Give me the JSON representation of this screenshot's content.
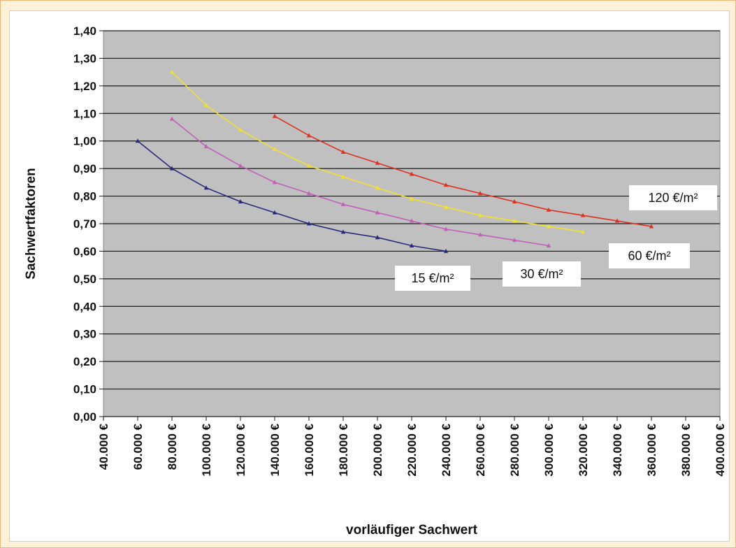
{
  "chart_data": {
    "type": "line",
    "title": "",
    "xlabel": "vorläufiger Sachwert",
    "ylabel": "Sachwertfaktoren",
    "xlim": [
      40000,
      400000
    ],
    "ylim": [
      0,
      1.4
    ],
    "x_ticks": [
      "40.000 €",
      "60.000 €",
      "80.000 €",
      "100.000 €",
      "120.000 €",
      "140.000 €",
      "160.000 €",
      "180.000 €",
      "200.000 €",
      "220.000 €",
      "240.000 €",
      "260.000 €",
      "280.000 €",
      "300.000 €",
      "320.000 €",
      "340.000 €",
      "360.000 €",
      "380.000 €",
      "400.000 €"
    ],
    "y_ticks": [
      "0,00",
      "0,10",
      "0,20",
      "0,30",
      "0,40",
      "0,50",
      "0,60",
      "0,70",
      "0,80",
      "0,90",
      "1,00",
      "1,10",
      "1,20",
      "1,30",
      "1,40"
    ],
    "grid": true,
    "plot_background": "#c0c0c0",
    "series": [
      {
        "name": "15 €/m²",
        "color": "#2a2a7a",
        "x": [
          60000,
          80000,
          100000,
          120000,
          140000,
          160000,
          180000,
          200000,
          220000,
          240000
        ],
        "y": [
          1.0,
          0.9,
          0.83,
          0.78,
          0.74,
          0.7,
          0.67,
          0.65,
          0.62,
          0.6
        ]
      },
      {
        "name": "30 €/m²",
        "color": "#c060b8",
        "x": [
          80000,
          100000,
          120000,
          140000,
          160000,
          180000,
          200000,
          220000,
          240000,
          260000,
          280000,
          300000
        ],
        "y": [
          1.08,
          0.98,
          0.91,
          0.85,
          0.81,
          0.77,
          0.74,
          0.71,
          0.68,
          0.66,
          0.64,
          0.62
        ]
      },
      {
        "name": "60 €/m²",
        "color": "#f0e030",
        "x": [
          80000,
          100000,
          120000,
          140000,
          160000,
          180000,
          200000,
          220000,
          240000,
          260000,
          280000,
          300000,
          320000
        ],
        "y": [
          1.25,
          1.13,
          1.04,
          0.97,
          0.91,
          0.87,
          0.83,
          0.79,
          0.76,
          0.73,
          0.71,
          0.69,
          0.67
        ]
      },
      {
        "name": "120 €/m²",
        "color": "#e03020",
        "x": [
          140000,
          160000,
          180000,
          200000,
          220000,
          240000,
          260000,
          280000,
          300000,
          320000,
          340000,
          360000
        ],
        "y": [
          1.09,
          1.02,
          0.96,
          0.92,
          0.88,
          0.84,
          0.81,
          0.78,
          0.75,
          0.73,
          0.71,
          0.69
        ]
      }
    ],
    "annotations": [
      "15 €/m²",
      "30 €/m²",
      "60 €/m²",
      "120 €/m²"
    ]
  }
}
